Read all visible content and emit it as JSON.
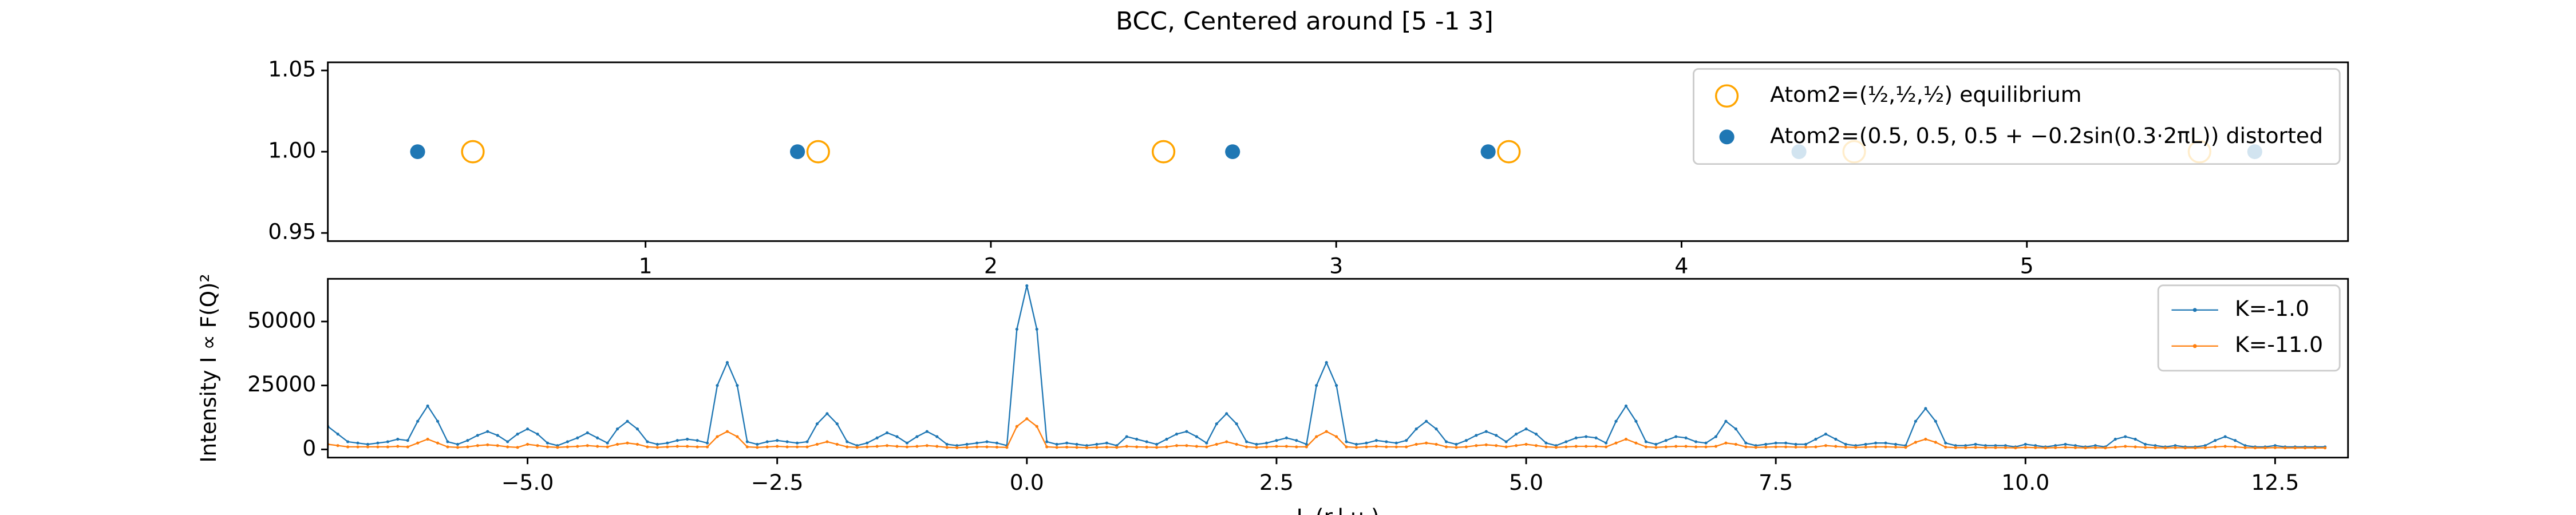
{
  "chart_data": [
    {
      "type": "scatter",
      "title": "BCC, Centered around [5 -1 3]",
      "xlim": [
        0.08,
        5.93
      ],
      "xticks": [
        1,
        2,
        3,
        4,
        5
      ],
      "ylim": [
        0.945,
        1.055
      ],
      "yticks": [
        {
          "value": 0.95,
          "label": "0.95"
        },
        {
          "value": 1.0,
          "label": "1.00"
        },
        {
          "value": 1.05,
          "label": "1.05"
        }
      ],
      "legend": "upper right",
      "series": [
        {
          "name": "Atom2=(½,½,½) equilibrium",
          "color": "#ffa500",
          "hollow": true,
          "x": [
            0.5,
            1.5,
            2.5,
            3.5,
            4.5,
            5.5
          ],
          "values": [
            1.0,
            1.0,
            1.0,
            1.0,
            1.0,
            1.0
          ]
        },
        {
          "name": "Atom2=(0.5, 0.5, 0.5 + −0.2sin(0.3·2πL)) distorted",
          "color": "#1f77b4",
          "x": [
            0.34,
            1.44,
            2.7,
            3.44,
            4.34,
            5.66
          ],
          "values": [
            1.0,
            1.0,
            1.0,
            1.0,
            1.0,
            1.0
          ]
        }
      ]
    },
    {
      "type": "line",
      "xlabel": "L (r.l.u.)",
      "ylabel": "Intensity I ∝ F(Q)²",
      "xlim": [
        -7,
        13.23
      ],
      "xticks": [
        {
          "value": -5,
          "label": "−5.0"
        },
        {
          "value": -2.5,
          "label": "−2.5"
        },
        {
          "value": 0,
          "label": "0.0"
        },
        {
          "value": 2.5,
          "label": "2.5"
        },
        {
          "value": 5,
          "label": "5.0"
        },
        {
          "value": 7.5,
          "label": "7.5"
        },
        {
          "value": 10,
          "label": "10.0"
        },
        {
          "value": 12.5,
          "label": "12.5"
        }
      ],
      "ylim": [
        -3200,
        66700
      ],
      "yticks": [
        0,
        25000,
        50000
      ],
      "legend": "upper right",
      "x": [
        -7,
        -6.9,
        -6.8,
        -6.7,
        -6.6,
        -6.5,
        -6.4,
        -6.3,
        -6.2,
        -6.1,
        -6,
        -5.9,
        -5.8,
        -5.7,
        -5.6,
        -5.5,
        -5.4,
        -5.3,
        -5.2,
        -5.1,
        -5,
        -4.9,
        -4.8,
        -4.7,
        -4.6,
        -4.5,
        -4.4,
        -4.3,
        -4.2,
        -4.1,
        -4,
        -3.9,
        -3.8,
        -3.7,
        -3.6,
        -3.5,
        -3.4,
        -3.3,
        -3.2,
        -3.1,
        -3,
        -2.9,
        -2.8,
        -2.7,
        -2.6,
        -2.5,
        -2.4,
        -2.3,
        -2.2,
        -2.1,
        -2,
        -1.9,
        -1.8,
        -1.7,
        -1.6,
        -1.5,
        -1.4,
        -1.3,
        -1.2,
        -1.1,
        -1,
        -0.9,
        -0.8,
        -0.7,
        -0.6,
        -0.5,
        -0.4,
        -0.3,
        -0.2,
        -0.1,
        0,
        0.1,
        0.2,
        0.3,
        0.4,
        0.5,
        0.6,
        0.7,
        0.8,
        0.9,
        1,
        1.1,
        1.2,
        1.3,
        1.4,
        1.5,
        1.6,
        1.7,
        1.8,
        1.9,
        2,
        2.1,
        2.2,
        2.3,
        2.4,
        2.5,
        2.6,
        2.7,
        2.8,
        2.9,
        3,
        3.1,
        3.2,
        3.3,
        3.4,
        3.5,
        3.6,
        3.7,
        3.8,
        3.9,
        4,
        4.1,
        4.2,
        4.3,
        4.4,
        4.5,
        4.6,
        4.7,
        4.8,
        4.9,
        5,
        5.1,
        5.2,
        5.3,
        5.4,
        5.5,
        5.6,
        5.7,
        5.8,
        5.9,
        6,
        6.1,
        6.2,
        6.3,
        6.4,
        6.5,
        6.6,
        6.7,
        6.8,
        6.9,
        7,
        7.1,
        7.2,
        7.3,
        7.4,
        7.5,
        7.6,
        7.7,
        7.8,
        7.9,
        8,
        8.1,
        8.2,
        8.3,
        8.4,
        8.5,
        8.6,
        8.7,
        8.8,
        8.9,
        9,
        9.1,
        9.2,
        9.3,
        9.4,
        9.5,
        9.6,
        9.7,
        9.8,
        9.9,
        10,
        10.1,
        10.2,
        10.3,
        10.4,
        10.5,
        10.6,
        10.7,
        10.8,
        10.9,
        11,
        11.1,
        11.2,
        11.3,
        11.4,
        11.5,
        11.6,
        11.7,
        11.8,
        11.9,
        12,
        12.1,
        12.2,
        12.3,
        12.4,
        12.5,
        12.6,
        12.7,
        12.8,
        12.9,
        13
      ],
      "series": [
        {
          "name": "K=-1.0",
          "color": "#1f77b4",
          "values": [
            9000,
            6000,
            3000,
            2500,
            2000,
            2500,
            3000,
            4000,
            3500,
            11000,
            17000,
            11000,
            3000,
            2000,
            3500,
            5500,
            7000,
            5500,
            3000,
            6000,
            8000,
            6000,
            2500,
            1500,
            3000,
            4500,
            6500,
            4500,
            2500,
            8000,
            11000,
            8000,
            3000,
            2000,
            2500,
            3500,
            4000,
            3500,
            2500,
            25000,
            34000,
            25000,
            3000,
            2000,
            3000,
            3500,
            3000,
            2500,
            3000,
            10000,
            14000,
            10000,
            3000,
            1500,
            2500,
            4500,
            6500,
            5000,
            2500,
            5000,
            7000,
            5000,
            2000,
            1500,
            2000,
            2500,
            3000,
            2500,
            1500,
            47000,
            64000,
            47000,
            3000,
            2000,
            2500,
            2000,
            1500,
            2000,
            2500,
            1500,
            5000,
            4000,
            3000,
            2000,
            4000,
            6000,
            7000,
            5000,
            2500,
            10000,
            14000,
            10000,
            3000,
            2000,
            2500,
            3500,
            4500,
            3500,
            2000,
            25000,
            34000,
            25000,
            3000,
            2000,
            2500,
            3500,
            3000,
            2500,
            3500,
            8000,
            11000,
            8000,
            3000,
            2000,
            3500,
            5500,
            7000,
            5500,
            3000,
            6000,
            8000,
            6000,
            2500,
            1500,
            3000,
            4500,
            5000,
            4500,
            2500,
            11000,
            17000,
            11000,
            3000,
            2000,
            3500,
            5000,
            4500,
            3000,
            2500,
            5000,
            11000,
            8000,
            2500,
            1500,
            2000,
            2500,
            2500,
            2000,
            2000,
            4000,
            6000,
            4000,
            2000,
            1500,
            2000,
            2500,
            2500,
            2000,
            1500,
            11000,
            16000,
            11000,
            2500,
            1500,
            1500,
            2000,
            1500,
            1500,
            1500,
            1000,
            2000,
            1500,
            1000,
            1500,
            2000,
            1500,
            1000,
            1500,
            1000,
            4000,
            5000,
            4000,
            2000,
            1500,
            1000,
            1500,
            1000,
            1000,
            1500,
            3500,
            5000,
            3500,
            1500,
            1000,
            1000,
            1500,
            1000,
            1000,
            1000,
            1000,
            1000
          ]
        },
        {
          "name": "K=-11.0",
          "color": "#ff7f0e",
          "values": [
            2000,
            1500,
            1000,
            1000,
            1000,
            1000,
            1000,
            1200,
            1000,
            2500,
            4000,
            2500,
            1000,
            800,
            1000,
            1500,
            1800,
            1500,
            1000,
            800,
            2000,
            1500,
            1000,
            800,
            1000,
            1200,
            1500,
            1200,
            1000,
            2000,
            2500,
            2000,
            1000,
            800,
            1000,
            1200,
            1200,
            1000,
            1000,
            5000,
            7000,
            5000,
            1000,
            800,
            1000,
            1200,
            1000,
            1000,
            1000,
            2000,
            3000,
            2000,
            1000,
            800,
            1000,
            1200,
            1500,
            1200,
            1000,
            1200,
            1500,
            1200,
            800,
            700,
            800,
            1000,
            1000,
            900,
            800,
            9000,
            12000,
            9000,
            1000,
            800,
            900,
            800,
            700,
            800,
            900,
            800,
            1200,
            1000,
            900,
            800,
            1000,
            1500,
            1500,
            1200,
            1000,
            2000,
            3000,
            2000,
            1000,
            800,
            1000,
            1200,
            1200,
            1000,
            1000,
            5000,
            7000,
            5000,
            1000,
            800,
            1000,
            1200,
            1000,
            1000,
            1000,
            2000,
            2500,
            2000,
            1000,
            800,
            1000,
            1500,
            1800,
            1500,
            1000,
            1500,
            2000,
            1500,
            1000,
            800,
            1000,
            1200,
            1200,
            1200,
            1000,
            2500,
            4000,
            2500,
            1000,
            800,
            1000,
            1200,
            1200,
            1000,
            1000,
            1200,
            2500,
            2000,
            1000,
            800,
            900,
            1000,
            1000,
            900,
            900,
            1000,
            1500,
            1200,
            900,
            800,
            900,
            1000,
            1000,
            900,
            800,
            2800,
            4000,
            2800,
            900,
            700,
            700,
            800,
            700,
            700,
            700,
            600,
            800,
            700,
            600,
            700,
            800,
            700,
            600,
            700,
            600,
            900,
            1200,
            1000,
            800,
            700,
            600,
            700,
            600,
            600,
            700,
            1000,
            1200,
            1000,
            700,
            600,
            600,
            700,
            600,
            600,
            600,
            600,
            600
          ]
        }
      ]
    }
  ]
}
